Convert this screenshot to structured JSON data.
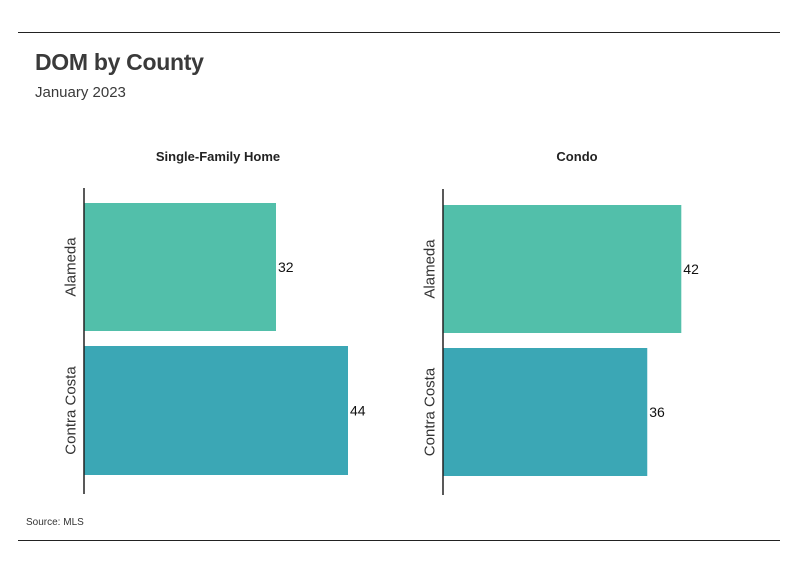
{
  "header": {
    "title": "DOM by County",
    "subtitle": "January 2023"
  },
  "footer": {
    "source": "Source: MLS"
  },
  "chart_data": [
    {
      "type": "bar",
      "orientation": "horizontal",
      "title": "Single-Family Home",
      "categories": [
        "Alameda",
        "Contra Costa"
      ],
      "values": [
        32,
        44
      ],
      "colors": [
        "#52bfaa",
        "#3ba7b5"
      ],
      "xlim": [
        0,
        46
      ]
    },
    {
      "type": "bar",
      "orientation": "horizontal",
      "title": "Condo",
      "categories": [
        "Alameda",
        "Contra Costa"
      ],
      "values": [
        42,
        36
      ],
      "colors": [
        "#52bfaa",
        "#3ba7b5"
      ],
      "xlim": [
        0,
        46
      ]
    }
  ]
}
